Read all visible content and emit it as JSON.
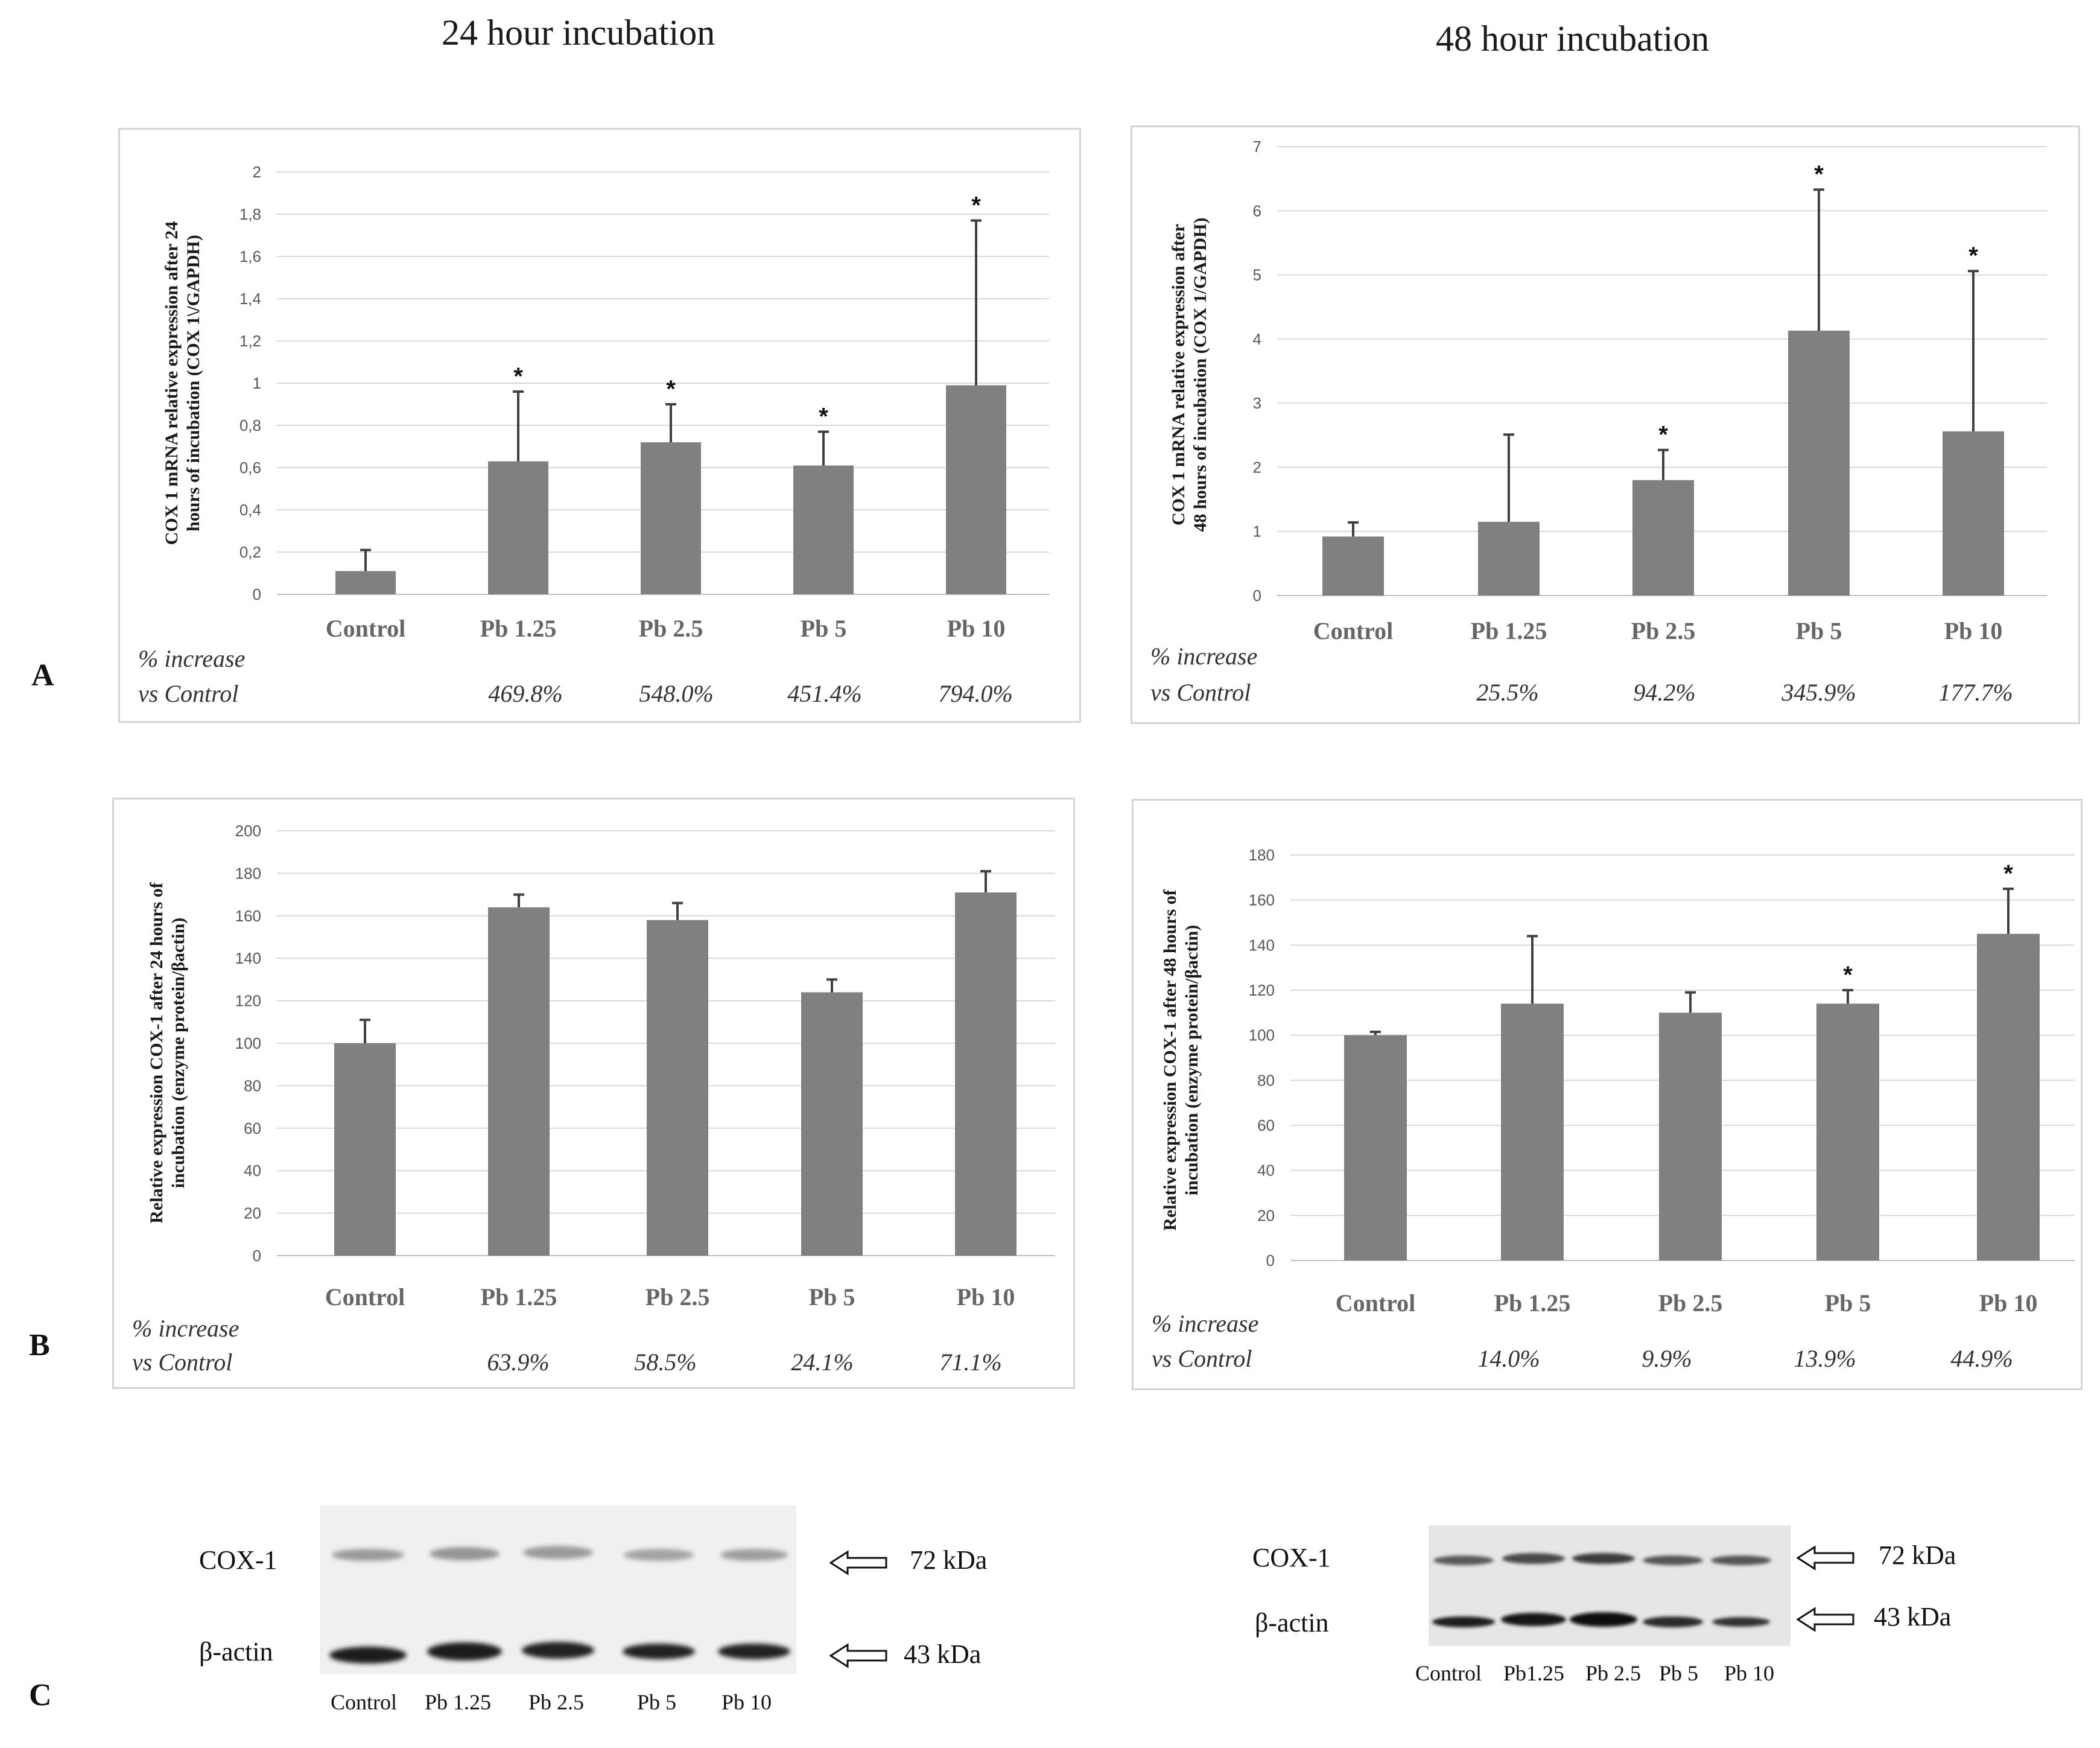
{
  "titles": {
    "left": "24 hour incubation",
    "right": "48 hour incubation"
  },
  "panel_letters": {
    "a": "A",
    "b": "B",
    "c": "C"
  },
  "increase_label": {
    "line1": "% increase",
    "line2": "vs Control"
  },
  "chart_data": [
    {
      "id": "A24",
      "type": "bar",
      "ylabel_lines": [
        "COX 1 mRNA relative expression after 24",
        "hours of incubation (COX 1\\/GAPDH)"
      ],
      "ylim": [
        0,
        2
      ],
      "ytick_labels": [
        "0",
        "0,2",
        "0,4",
        "0,6",
        "0,8",
        "1",
        "1,2",
        "1,4",
        "1,6",
        "1,8",
        "2"
      ],
      "grid": true,
      "categories": [
        "Control",
        "Pb 1.25",
        "Pb 2.5",
        "Pb 5",
        "Pb 10"
      ],
      "values": [
        0.11,
        0.63,
        0.72,
        0.61,
        0.99
      ],
      "errors": [
        0.1,
        0.33,
        0.18,
        0.16,
        0.78
      ],
      "significant": [
        false,
        true,
        true,
        true,
        true
      ],
      "percent_increase": [
        "",
        "469.8%",
        "548.0%",
        "451.4%",
        "794.0%"
      ]
    },
    {
      "id": "A48",
      "type": "bar",
      "ylabel_lines": [
        "COX 1 mRNA relative expression after",
        "48 hours of incubation (COX 1/GAPDH)"
      ],
      "ylim": [
        0,
        7
      ],
      "ytick_labels": [
        "0",
        "1",
        "2",
        "3",
        "4",
        "5",
        "6",
        "7"
      ],
      "grid": true,
      "categories": [
        "Control",
        "Pb 1.25",
        "Pb 2.5",
        "Pb 5",
        "Pb 10"
      ],
      "values": [
        0.92,
        1.15,
        1.8,
        4.13,
        2.56
      ],
      "errors": [
        0.22,
        1.36,
        0.47,
        2.2,
        2.5
      ],
      "significant": [
        false,
        false,
        true,
        true,
        true
      ],
      "percent_increase": [
        "",
        "25.5%",
        "94.2%",
        "345.9%",
        "177.7%"
      ]
    },
    {
      "id": "B24",
      "type": "bar",
      "ylabel_lines": [
        "Relative expression COX-1 after 24 hours of",
        "incubation (enzyme protein/βactin)"
      ],
      "ylim": [
        0,
        200
      ],
      "ytick_labels": [
        "0",
        "20",
        "40",
        "60",
        "80",
        "100",
        "120",
        "140",
        "160",
        "180",
        "200"
      ],
      "grid": true,
      "categories": [
        "Control",
        "Pb 1.25",
        "Pb 2.5",
        "Pb 5",
        "Pb 10"
      ],
      "values": [
        100,
        164,
        158,
        124,
        171
      ],
      "errors": [
        11,
        6,
        8,
        6,
        10
      ],
      "significant": [
        false,
        false,
        false,
        false,
        false
      ],
      "percent_increase": [
        "",
        "63.9%",
        "58.5%",
        "24.1%",
        "71.1%"
      ]
    },
    {
      "id": "B48",
      "type": "bar",
      "ylabel_lines": [
        "Relative expression COX-1 after 48 hours of",
        "incubation (enzyme protein/βactin)"
      ],
      "ylim": [
        0,
        180
      ],
      "ytick_labels": [
        "0",
        "20",
        "40",
        "60",
        "80",
        "100",
        "120",
        "140",
        "160",
        "180"
      ],
      "grid": true,
      "categories": [
        "Control",
        "Pb 1.25",
        "Pb 2.5",
        "Pb 5",
        "Pb 10"
      ],
      "values": [
        100,
        114,
        110,
        114,
        145
      ],
      "errors": [
        1.5,
        30,
        9,
        6,
        20
      ],
      "significant": [
        false,
        false,
        false,
        true,
        true
      ],
      "percent_increase": [
        "",
        "14.0%",
        "9.9%",
        "13.9%",
        "44.9%"
      ]
    }
  ],
  "blots": {
    "left": {
      "cox_label": "COX-1",
      "actin_label": "β-actin",
      "cox_kda": "72 kDa",
      "actin_kda": "43 kDa",
      "lanes": [
        "Control",
        "Pb 1.25",
        "Pb 2.5",
        "Pb 5",
        "Pb 10"
      ]
    },
    "right": {
      "cox_label": "COX-1",
      "actin_label": "β-actin",
      "cox_kda": "72 kDa",
      "actin_kda": "43 kDa",
      "lanes": [
        "Control",
        "Pb1.25",
        "Pb 2.5",
        "Pb 5",
        "Pb 10"
      ]
    }
  }
}
